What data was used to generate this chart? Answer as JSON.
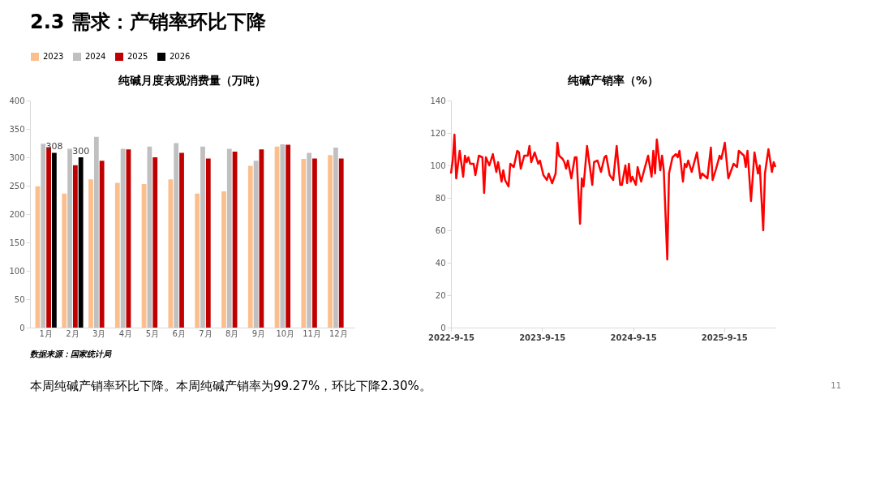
{
  "chart_data": [
    {
      "type": "bar",
      "title": "纯碱月度表观消费量（万吨）",
      "categories": [
        "1月",
        "2月",
        "3月",
        "4月",
        "5月",
        "6月",
        "7月",
        "8月",
        "9月",
        "10月",
        "11月",
        "12月"
      ],
      "series": [
        {
          "name": "2023",
          "color": "#fbbf8e",
          "values": [
            249,
            236,
            261,
            255,
            253,
            261,
            236,
            240,
            285,
            319,
            297,
            304
          ]
        },
        {
          "name": "2024",
          "color": "#c0c0c0",
          "values": [
            324,
            315,
            336,
            315,
            319,
            325,
            319,
            315,
            294,
            323,
            308,
            317
          ]
        },
        {
          "name": "2025",
          "color": "#c00000",
          "values": [
            318,
            286,
            294,
            314,
            300,
            308,
            298,
            310,
            314,
            322,
            298,
            298
          ]
        },
        {
          "name": "2026",
          "color": "#000000",
          "values": [
            308,
            300,
            null,
            null,
            null,
            null,
            null,
            null,
            null,
            null,
            null,
            null
          ],
          "value_labels": [
            "308",
            "300",
            null,
            null,
            null,
            null,
            null,
            null,
            null,
            null,
            null,
            null
          ]
        }
      ],
      "ylim": [
        0,
        400
      ],
      "yticks": [
        0,
        50,
        100,
        150,
        200,
        250,
        300,
        350,
        400
      ],
      "grid": false,
      "legend": "top",
      "annotations": [
        "2.3 需求：产销率环比下降",
        "数据来源：国家统计局",
        "本周纯碱产销率环比下降。本周纯碱产销率为99.27%，环比下降2.30%。",
        "11"
      ]
    },
    {
      "type": "line",
      "title": "纯碱产销率（%）",
      "x": [
        "2022-09-15",
        "2022-09-22",
        "2022-09-29",
        "2022-10-06",
        "2022-10-20",
        "2022-11-03",
        "2022-11-10",
        "2022-11-17",
        "2022-11-24",
        "2022-12-01",
        "2022-12-15",
        "2022-12-22",
        "2023-01-05",
        "2023-01-19",
        "2023-01-26",
        "2023-02-02",
        "2023-02-16",
        "2023-03-02",
        "2023-03-16",
        "2023-03-23",
        "2023-04-06",
        "2023-04-13",
        "2023-04-20",
        "2023-05-04",
        "2023-05-11",
        "2023-05-25",
        "2023-06-08",
        "2023-06-15",
        "2023-06-22",
        "2023-07-06",
        "2023-07-20",
        "2023-07-27",
        "2023-08-03",
        "2023-08-17",
        "2023-08-31",
        "2023-09-07",
        "2023-09-21",
        "2023-10-05",
        "2023-10-12",
        "2023-10-26",
        "2023-11-09",
        "2023-11-16",
        "2023-11-23",
        "2023-12-07",
        "2023-12-14",
        "2023-12-21",
        "2023-12-28",
        "2024-01-11",
        "2024-01-25",
        "2024-02-01",
        "2024-02-15",
        "2024-02-22",
        "2024-02-29",
        "2024-03-14",
        "2024-04-04",
        "2024-04-11",
        "2024-04-25",
        "2024-05-09",
        "2024-05-23",
        "2024-05-30",
        "2024-06-13",
        "2024-06-27",
        "2024-07-11",
        "2024-07-25",
        "2024-08-01",
        "2024-08-15",
        "2024-08-22",
        "2024-08-29",
        "2024-09-05",
        "2024-09-12",
        "2024-09-26",
        "2024-10-03",
        "2024-10-17",
        "2024-10-31",
        "2024-11-14",
        "2024-11-28",
        "2024-12-05",
        "2024-12-12",
        "2024-12-19",
        "2025-01-02",
        "2025-01-09",
        "2025-01-16",
        "2025-01-30",
        "2025-02-06",
        "2025-02-20",
        "2025-03-06",
        "2025-03-13",
        "2025-03-20",
        "2025-04-03",
        "2025-04-10",
        "2025-04-17",
        "2025-04-24",
        "2025-05-08",
        "2025-05-29",
        "2025-06-12",
        "2025-06-19",
        "2025-07-10",
        "2025-07-24",
        "2025-07-31",
        "2025-08-14",
        "2025-08-28",
        "2025-09-04",
        "2025-09-18",
        "2025-10-02",
        "2025-10-23",
        "2025-11-06",
        "2025-11-13",
        "2025-12-04",
        "2025-12-11",
        "2025-12-18",
        "2026-01-01",
        "2026-01-15",
        "2026-01-29",
        "2026-02-05",
        "2026-02-19",
        "2026-02-26",
        "2026-03-12",
        "2026-03-26",
        "2026-04-02",
        "2026-04-09"
      ],
      "series": [
        {
          "color": "#ff0000",
          "values": [
            95,
            103,
            119,
            92,
            109,
            93,
            106,
            102,
            105,
            101,
            101,
            94,
            106,
            105,
            83,
            105,
            100,
            107,
            96,
            102,
            90,
            97,
            91,
            87,
            101,
            99,
            109,
            108,
            98,
            106,
            106,
            112,
            102,
            108,
            101,
            103,
            94,
            91,
            95,
            89,
            95,
            114,
            106,
            104,
            102,
            98,
            103,
            92,
            105,
            105,
            64,
            92,
            87,
            112,
            88,
            102,
            103,
            96,
            105,
            106,
            94,
            91,
            112,
            88,
            88,
            100,
            89,
            101,
            90,
            93,
            88,
            99,
            90,
            98,
            106,
            93,
            109,
            95,
            116,
            97,
            106,
            97,
            42,
            95,
            105,
            107,
            105,
            109,
            90,
            101,
            99,
            103,
            96,
            108,
            92,
            95,
            92,
            111,
            91,
            98,
            106,
            104,
            114,
            92,
            101,
            99,
            109,
            106,
            99,
            109,
            78,
            108,
            95,
            100,
            60,
            95,
            110,
            96,
            102,
            99
          ]
        }
      ],
      "xlim": [
        "2022-09-15",
        "2026-04-09"
      ],
      "xticks": [
        {
          "value": "2022-09-15",
          "label": "2022-9-15"
        },
        {
          "value": "2023-09-15",
          "label": "2023-9-15"
        },
        {
          "value": "2024-09-15",
          "label": "2024-9-15"
        },
        {
          "value": "2025-09-15",
          "label": "2025-9-15"
        }
      ],
      "ylim": [
        0,
        140
      ],
      "yticks": [
        0,
        20,
        40,
        60,
        80,
        100,
        120,
        140
      ],
      "grid": false
    }
  ]
}
